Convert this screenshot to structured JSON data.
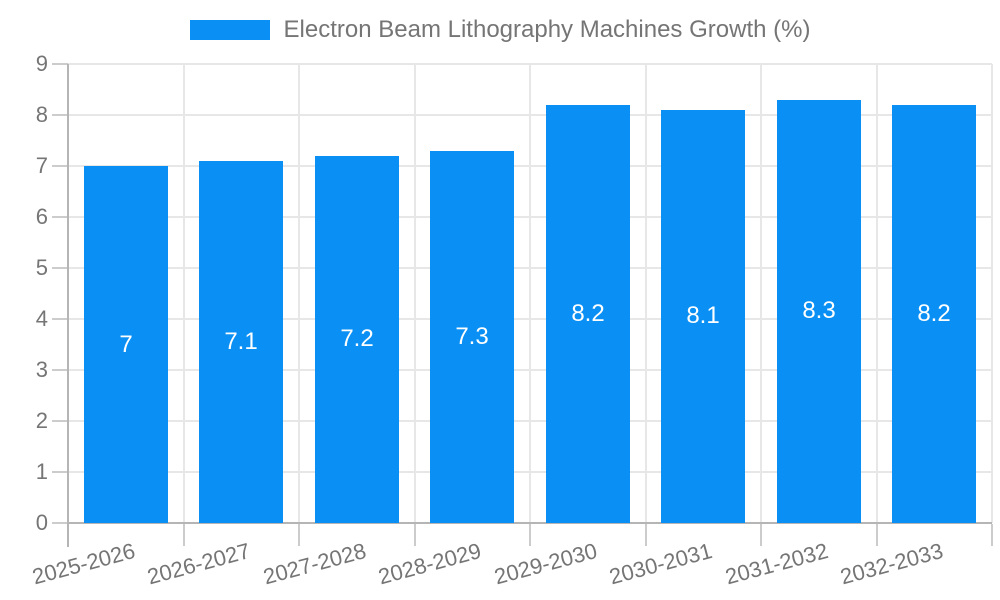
{
  "chart_data": {
    "type": "bar",
    "title": "Electron Beam Lithography Machines Growth (%)",
    "categories": [
      "2025-2026",
      "2026-2027",
      "2027-2028",
      "2028-2029",
      "2029-2030",
      "2030-2031",
      "2031-2032",
      "2032-2033"
    ],
    "values": [
      7,
      7.1,
      7.2,
      7.3,
      8.2,
      8.1,
      8.3,
      8.2
    ],
    "ylim": [
      0,
      9
    ],
    "y_ticks": [
      0,
      1,
      2,
      3,
      4,
      5,
      6,
      7,
      8,
      9
    ],
    "grid": true,
    "legend_position": "top",
    "value_label_position": "inside-center",
    "colors": {
      "bar": "#0A90F4",
      "grid": "#e7e7e7",
      "axis": "#b5b5b5",
      "tick": "#cccccc",
      "label_text": "#757575",
      "bar_label_text": "#ffffff",
      "background": "#ffffff"
    }
  }
}
